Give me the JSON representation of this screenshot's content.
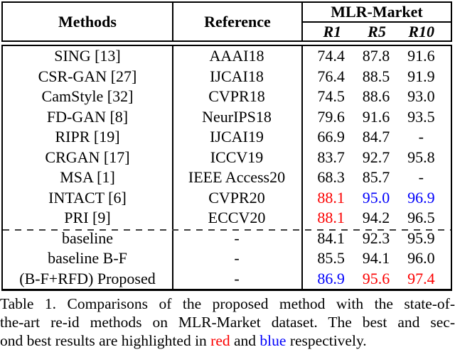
{
  "colors": {
    "red": "#fb0000",
    "blue": "#0000fb"
  },
  "table": {
    "header": {
      "methods": "Methods",
      "reference": "Reference",
      "group": "MLR-Market",
      "subcols": [
        "R1",
        "R5",
        "R10"
      ]
    },
    "rows": [
      {
        "method": "SING [13]",
        "reference": "AAAI18",
        "values": [
          "74.4",
          "87.8",
          "91.6"
        ],
        "value_colors": [
          "",
          "",
          ""
        ]
      },
      {
        "method": "CSR-GAN [27]",
        "reference": "IJCAI18",
        "values": [
          "76.4",
          "88.5",
          "91.9"
        ],
        "value_colors": [
          "",
          "",
          ""
        ]
      },
      {
        "method": "CamStyle [32]",
        "reference": "CVPR18",
        "values": [
          "74.5",
          "88.6",
          "93.0"
        ],
        "value_colors": [
          "",
          "",
          ""
        ]
      },
      {
        "method": "FD-GAN [8]",
        "reference": "NeurIPS18",
        "values": [
          "79.6",
          "91.6",
          "93.5"
        ],
        "value_colors": [
          "",
          "",
          ""
        ]
      },
      {
        "method": "RIPR [19]",
        "reference": "IJCAI19",
        "values": [
          "66.9",
          "84.7",
          "-"
        ],
        "value_colors": [
          "",
          "",
          ""
        ]
      },
      {
        "method": "CRGAN [17]",
        "reference": "ICCV19",
        "values": [
          "83.7",
          "92.7",
          "95.8"
        ],
        "value_colors": [
          "",
          "",
          ""
        ]
      },
      {
        "method": "MSA [1]",
        "reference": "IEEE Access20",
        "values": [
          "68.3",
          "85.7",
          "-"
        ],
        "value_colors": [
          "",
          "",
          ""
        ]
      },
      {
        "method": "INTACT [6]",
        "reference": "CVPR20",
        "values": [
          "88.1",
          "95.0",
          "96.9"
        ],
        "value_colors": [
          "red",
          "blue",
          "blue"
        ]
      },
      {
        "method": "PRI [9]",
        "reference": "ECCV20",
        "values": [
          "88.1",
          "94.2",
          "96.5"
        ],
        "value_colors": [
          "red",
          "",
          ""
        ]
      },
      {
        "method": "baseline",
        "reference": "-",
        "values": [
          "84.1",
          "92.3",
          "95.9"
        ],
        "value_colors": [
          "",
          "",
          ""
        ]
      },
      {
        "method": "baseline B-F",
        "reference": "-",
        "values": [
          "85.5",
          "94.1",
          "96.0"
        ],
        "value_colors": [
          "",
          "",
          ""
        ]
      },
      {
        "method": "(B-F+RFD) Proposed",
        "reference": "-",
        "values": [
          "86.9",
          "95.6",
          "97.4"
        ],
        "value_colors": [
          "blue",
          "red",
          "red"
        ]
      }
    ]
  },
  "caption": {
    "line1": "Table 1. Comparisons of the proposed method with the state-of-",
    "line2": "the-art re-id methods on MLR-Market dataset. The best and sec-",
    "line3_parts": [
      "ond best results are highlighted in ",
      "red",
      " and ",
      "blue",
      " respectively."
    ],
    "line3_part_colors": [
      "",
      "red",
      "",
      "blue",
      ""
    ]
  }
}
